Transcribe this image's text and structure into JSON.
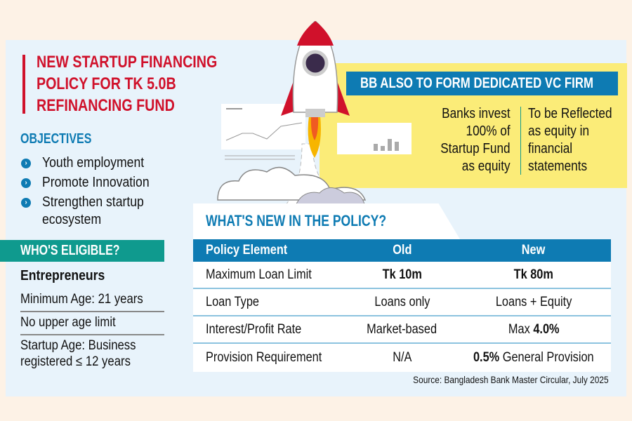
{
  "title": "NEW STARTUP FINANCING POLICY FOR TK 5.0B REFINANCING FUND",
  "title_lines": [
    "NEW STARTUP FINANCING",
    "POLICY FOR TK 5.0B",
    "REFINANCING FUND"
  ],
  "objectives": {
    "heading": "OBJECTIVES",
    "items": [
      "Youth employment",
      "Promote Innovation",
      "Strengthen startup ecosystem"
    ],
    "items_lines": [
      [
        "Youth employment"
      ],
      [
        "Promote Innovation"
      ],
      [
        "Strengthen startup",
        "ecosystem"
      ]
    ]
  },
  "eligibility": {
    "heading": "WHO'S ELIGIBLE?",
    "subheading": "Entrepreneurs",
    "items": [
      "Minimum Age: 21 years",
      "No upper age limit",
      "Startup Age: Business registered ≤ 12 years"
    ],
    "last_lines": [
      "Startup Age: Business",
      "registered ≤ 12 years"
    ]
  },
  "vc_firm": {
    "heading": "BB ALSO TO FORM DEDICATED VC FIRM",
    "left_lines": [
      "Banks invest",
      "100% of",
      "Startup Fund",
      "as equity"
    ],
    "right_lines": [
      "To be Reflected",
      "as equity in",
      "financial",
      "statements"
    ]
  },
  "policy_table": {
    "heading": "WHAT'S NEW IN THE POLICY?",
    "columns": [
      "Policy Element",
      "Old",
      "New"
    ],
    "rows": [
      {
        "element": "Maximum Loan Limit",
        "old": "Tk 10m",
        "new_bold": "Tk 80m",
        "new_rest": ""
      },
      {
        "element": "Loan Type",
        "old": "Loans only",
        "new_bold": "",
        "new_rest": "Loans + Equity"
      },
      {
        "element": "Interest/Profit Rate",
        "old": "Market-based",
        "new_pre": "Max ",
        "new_bold": "4.0%",
        "new_rest": ""
      },
      {
        "element": "Provision Requirement",
        "old": "N/A",
        "new_bold": "0.5%",
        "new_rest": " General Provision"
      }
    ]
  },
  "source": "Source: Bangladesh Bank Master Circular, July 2025",
  "colors": {
    "red": "#d0112b",
    "blue": "#0e7bb3",
    "teal": "#0f9a8e",
    "yellow": "#fbec78",
    "panel": "#e8f3fb",
    "cream": "#fdf2e6"
  }
}
